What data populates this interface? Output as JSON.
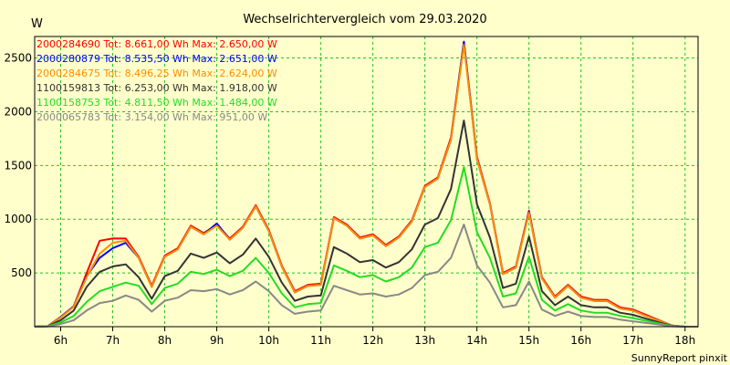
{
  "chart_data": {
    "type": "line",
    "title": "Wechselrichtervergleich vom 29.03.2020",
    "ylabel": "W",
    "xlabel": "",
    "footer": "SunnyReport pinxit",
    "ylim": [
      0,
      2700
    ],
    "xlim": [
      5.5,
      18.25
    ],
    "yticks": [
      500,
      1000,
      1500,
      2000,
      2500
    ],
    "xticks": [
      {
        "value": 6,
        "label": "6h"
      },
      {
        "value": 7,
        "label": "7h"
      },
      {
        "value": 8,
        "label": "8h"
      },
      {
        "value": 9,
        "label": "9h"
      },
      {
        "value": 10,
        "label": "10h"
      },
      {
        "value": 11,
        "label": "11h"
      },
      {
        "value": 12,
        "label": "12h"
      },
      {
        "value": 13,
        "label": "13h"
      },
      {
        "value": 14,
        "label": "14h"
      },
      {
        "value": 15,
        "label": "15h"
      },
      {
        "value": 16,
        "label": "16h"
      },
      {
        "value": 17,
        "label": "17h"
      },
      {
        "value": 18,
        "label": "18h"
      }
    ],
    "grid": true,
    "x": [
      5.5,
      5.75,
      6.0,
      6.25,
      6.5,
      6.75,
      7.0,
      7.25,
      7.5,
      7.75,
      8.0,
      8.25,
      8.5,
      8.75,
      9.0,
      9.25,
      9.5,
      9.75,
      10.0,
      10.25,
      10.5,
      10.75,
      11.0,
      11.25,
      11.5,
      11.75,
      12.0,
      12.25,
      12.5,
      12.75,
      13.0,
      13.25,
      13.5,
      13.75,
      14.0,
      14.25,
      14.5,
      14.75,
      15.0,
      15.25,
      15.5,
      15.75,
      16.0,
      16.25,
      16.5,
      16.75,
      17.0,
      17.25,
      17.5,
      17.75,
      18.0,
      18.25
    ],
    "series": [
      {
        "name": "2000284690",
        "label": "2000284690 Tot: 8.661,00 Wh Max: 2.650,00 W",
        "color": "#ff0000",
        "values": [
          0,
          5,
          90,
          190,
          500,
          800,
          820,
          820,
          650,
          380,
          660,
          730,
          940,
          870,
          950,
          820,
          930,
          1130,
          900,
          570,
          330,
          390,
          400,
          1020,
          950,
          830,
          860,
          760,
          840,
          990,
          1310,
          1390,
          1760,
          2650,
          1580,
          1150,
          500,
          560,
          1080,
          460,
          280,
          390,
          280,
          250,
          250,
          180,
          160,
          110,
          60,
          10,
          0,
          0
        ]
      },
      {
        "name": "2000280879",
        "label": "2000280879 Tot: 8.535,50 Wh Max: 2.651,00 W",
        "color": "#0000ff",
        "values": [
          0,
          5,
          90,
          190,
          470,
          640,
          730,
          780,
          640,
          370,
          650,
          720,
          930,
          860,
          960,
          810,
          920,
          1120,
          890,
          560,
          320,
          380,
          390,
          1010,
          940,
          820,
          850,
          750,
          830,
          980,
          1300,
          1380,
          1740,
          2651,
          1560,
          1140,
          490,
          550,
          1070,
          450,
          270,
          380,
          270,
          240,
          240,
          170,
          150,
          100,
          55,
          10,
          0,
          0
        ]
      },
      {
        "name": "2000284675",
        "label": "2000284675 Tot: 8.496,25 Wh Max: 2.624,00 W",
        "color": "#ff8c00",
        "values": [
          0,
          5,
          85,
          185,
          460,
          680,
          780,
          800,
          640,
          370,
          650,
          720,
          930,
          860,
          940,
          810,
          920,
          1120,
          890,
          560,
          320,
          380,
          390,
          1010,
          940,
          820,
          850,
          750,
          830,
          980,
          1300,
          1380,
          1740,
          2624,
          1560,
          1140,
          490,
          550,
          1060,
          450,
          270,
          380,
          270,
          240,
          240,
          170,
          150,
          100,
          55,
          10,
          0,
          0
        ]
      },
      {
        "name": "1100159813",
        "label": "1100159813 Tot: 6.253,00 Wh Max: 1.918,00 W",
        "color": "#333333",
        "values": [
          0,
          4,
          60,
          150,
          370,
          510,
          560,
          580,
          460,
          260,
          470,
          520,
          680,
          640,
          690,
          590,
          670,
          820,
          650,
          410,
          240,
          280,
          290,
          740,
          680,
          600,
          620,
          550,
          600,
          720,
          950,
          1010,
          1280,
          1918,
          1140,
          830,
          360,
          400,
          840,
          330,
          200,
          280,
          200,
          180,
          180,
          130,
          110,
          75,
          40,
          8,
          0,
          0
        ]
      },
      {
        "name": "1100158753",
        "label": "1100158753 Tot: 4.811,50 Wh Max: 1.484,00 W",
        "color": "#22dd22",
        "values": [
          0,
          3,
          40,
          100,
          230,
          330,
          370,
          410,
          380,
          210,
          360,
          400,
          510,
          490,
          530,
          470,
          520,
          640,
          500,
          310,
          180,
          210,
          220,
          570,
          520,
          460,
          480,
          420,
          460,
          550,
          740,
          780,
          990,
          1484,
          880,
          640,
          280,
          310,
          650,
          250,
          150,
          210,
          150,
          130,
          130,
          100,
          80,
          55,
          30,
          5,
          0,
          0
        ]
      },
      {
        "name": "2000065783",
        "label": "2000065783 Tot: 3.154,00 Wh Max: 951,00 W",
        "color": "#888888",
        "values": [
          0,
          2,
          25,
          60,
          150,
          220,
          240,
          290,
          250,
          140,
          240,
          270,
          340,
          330,
          350,
          300,
          340,
          420,
          330,
          200,
          120,
          140,
          150,
          380,
          340,
          300,
          310,
          280,
          300,
          360,
          480,
          510,
          640,
          951,
          570,
          410,
          180,
          200,
          420,
          160,
          100,
          140,
          100,
          90,
          90,
          65,
          50,
          35,
          20,
          3,
          0,
          0
        ]
      }
    ]
  }
}
